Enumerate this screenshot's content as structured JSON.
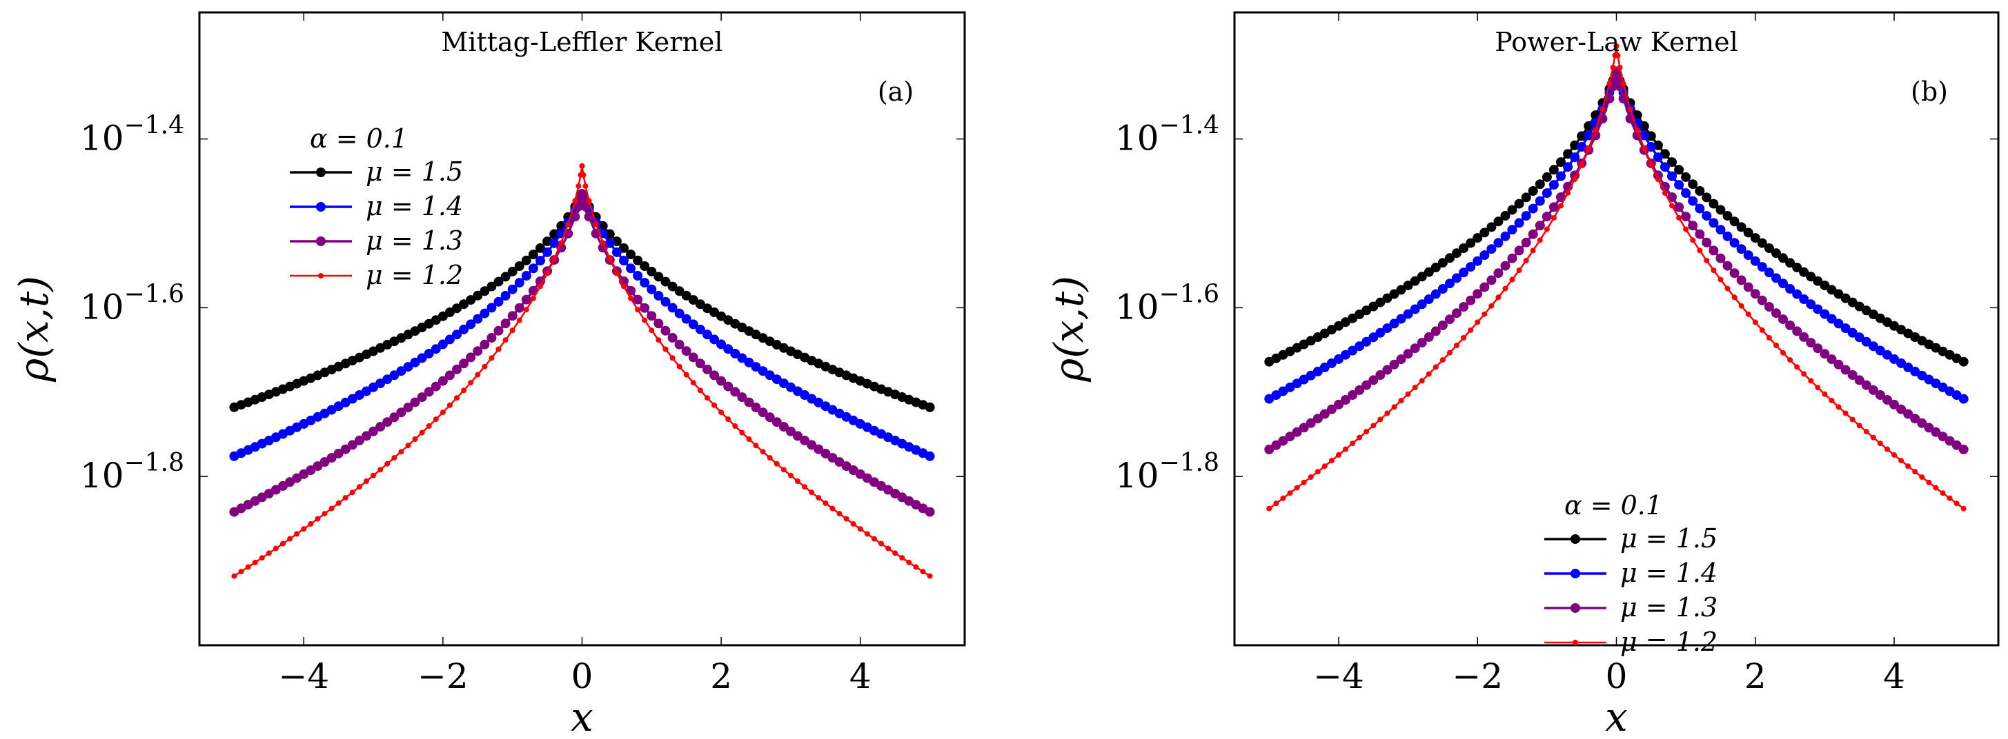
{
  "figure_caption": "",
  "chart_data": [
    {
      "type": "line",
      "panel_label": "(a)",
      "title": "Mittag-Leffler Kernel",
      "xlabel": "x",
      "ylabel": "ρ(x,t)",
      "xlim": [
        -5.5,
        5.5
      ],
      "ylim_log10": [
        -2.0,
        -1.25
      ],
      "yscale": "log",
      "x_ticks": [
        -4,
        -2,
        0,
        2,
        4
      ],
      "x_tick_labels": [
        "−4",
        "−2",
        "0",
        "2",
        "4"
      ],
      "y_ticks_log10": [
        -1.4,
        -1.6,
        -1.8
      ],
      "y_tick_base": "10",
      "y_tick_exponents": [
        "−1.4",
        "−1.6",
        "−1.8"
      ],
      "legend_title": "α = 0.1",
      "legend_position": "upper-left",
      "series": [
        {
          "name": "μ = 1.5",
          "color": "#000000",
          "peak_log10": -1.465,
          "edge_log10": -1.718,
          "sharpness": 0.15
        },
        {
          "name": "μ = 1.4",
          "color": "#0000ff",
          "peak_log10": -1.465,
          "edge_log10": -1.776,
          "sharpness": 0.15
        },
        {
          "name": "μ = 1.3",
          "color": "#800080",
          "peak_log10": -1.465,
          "edge_log10": -1.842,
          "sharpness": 0.08
        },
        {
          "name": "μ = 1.2",
          "color": "#ff0000",
          "peak_log10": -1.432,
          "edge_log10": -1.918,
          "sharpness": 0.04
        }
      ]
    },
    {
      "type": "line",
      "panel_label": "(b)",
      "title": "Power-Law Kernel",
      "xlabel": "x",
      "ylabel": "ρ(x,t)",
      "xlim": [
        -5.5,
        5.5
      ],
      "ylim_log10": [
        -2.0,
        -1.25
      ],
      "yscale": "log",
      "x_ticks": [
        -4,
        -2,
        0,
        2,
        4
      ],
      "x_tick_labels": [
        "−4",
        "−2",
        "0",
        "2",
        "4"
      ],
      "y_ticks_log10": [
        -1.4,
        -1.6,
        -1.8
      ],
      "y_tick_base": "10",
      "y_tick_exponents": [
        "−1.4",
        "−1.6",
        "−1.8"
      ],
      "legend_title": "α = 0.1",
      "legend_position": "lower-center",
      "series": [
        {
          "name": "μ = 1.5",
          "color": "#000000",
          "peak_log10": -1.32,
          "edge_log10": -1.664,
          "sharpness": 0.15
        },
        {
          "name": "μ = 1.4",
          "color": "#0000ff",
          "peak_log10": -1.32,
          "edge_log10": -1.708,
          "sharpness": 0.12
        },
        {
          "name": "μ = 1.3",
          "color": "#800080",
          "peak_log10": -1.32,
          "edge_log10": -1.768,
          "sharpness": 0.08
        },
        {
          "name": "μ = 1.2",
          "color": "#ff0000",
          "peak_log10": -1.29,
          "edge_log10": -1.838,
          "sharpness": 0.05
        }
      ]
    }
  ]
}
